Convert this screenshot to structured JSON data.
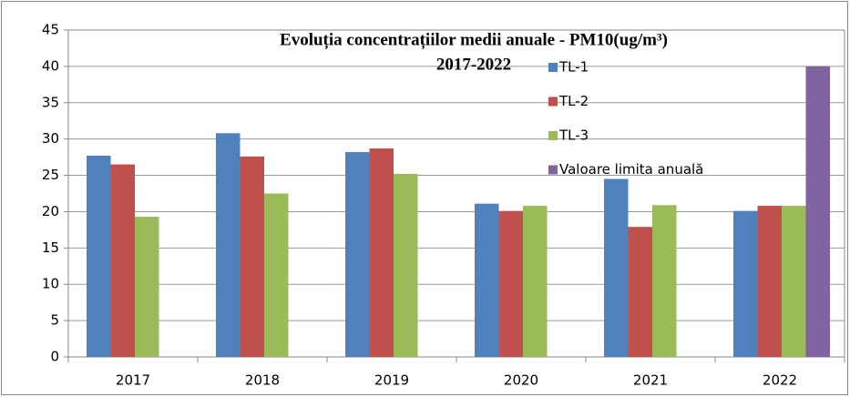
{
  "chart_data": {
    "type": "bar",
    "title": "Evoluția concentrațiilor medii anuale - PM10(ug/m³)",
    "subtitle": "2017-2022",
    "categories": [
      "2017",
      "2018",
      "2019",
      "2020",
      "2021",
      "2022"
    ],
    "series": [
      {
        "name": "TL-1",
        "color": "#4f81bd",
        "values": [
          27.7,
          30.8,
          28.2,
          21.1,
          24.5,
          20.1
        ]
      },
      {
        "name": "TL-2",
        "color": "#c0504d",
        "values": [
          26.5,
          27.6,
          28.7,
          20.1,
          17.9,
          20.8
        ]
      },
      {
        "name": "TL-3",
        "color": "#9bbb59",
        "values": [
          19.3,
          22.5,
          25.2,
          20.8,
          20.9,
          20.8
        ]
      },
      {
        "name": "Valoare limita anuală",
        "color": "#8064a2",
        "values": [
          null,
          null,
          null,
          null,
          null,
          40
        ]
      }
    ],
    "ylim": [
      0,
      45
    ],
    "yticks": [
      0,
      5,
      10,
      15,
      20,
      25,
      30,
      35,
      40,
      45
    ],
    "grid": true
  }
}
